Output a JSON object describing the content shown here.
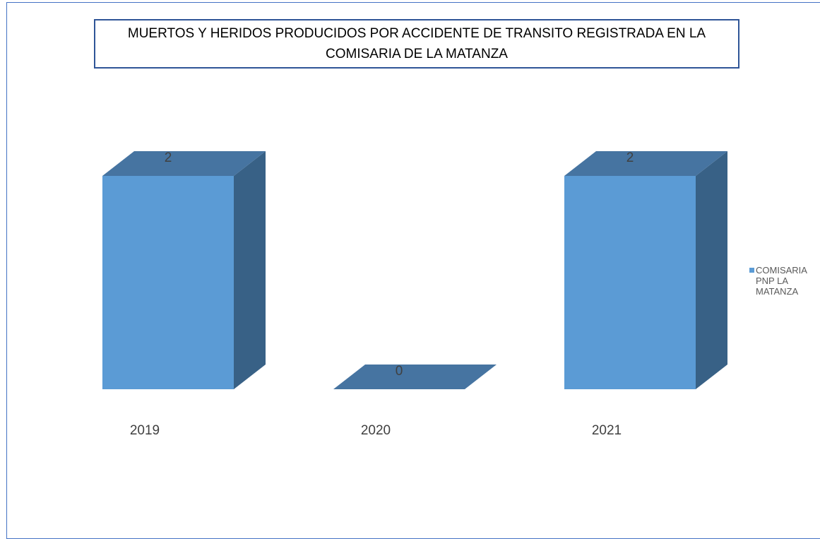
{
  "chart_data": {
    "type": "bar3d",
    "title": "MUERTOS Y HERIDOS PRODUCIDOS POR ACCIDENTE DE TRANSITO REGISTRADA EN LA COMISARIA DE LA MATANZA",
    "categories": [
      "2019",
      "2020",
      "2021"
    ],
    "series": [
      {
        "name": "COMISARIA PNP LA MATANZA",
        "color": "#5b9bd5",
        "values": [
          2,
          0,
          2
        ]
      }
    ],
    "legend": "right"
  }
}
